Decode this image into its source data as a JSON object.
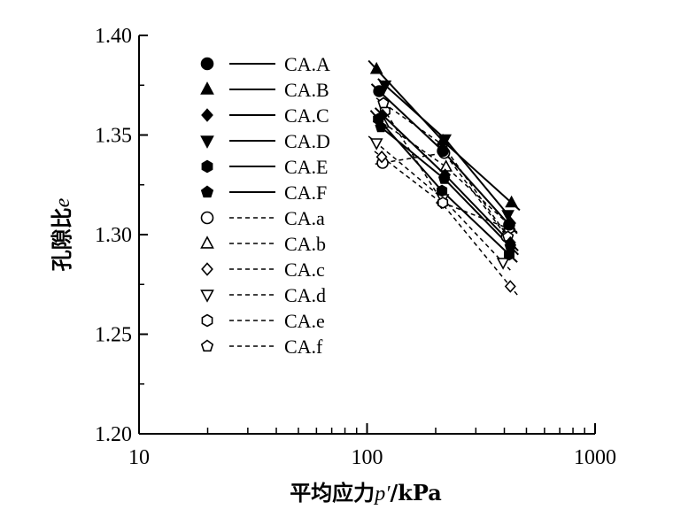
{
  "chart_data": {
    "type": "line",
    "x_scale": "log",
    "xlim": [
      10,
      1000
    ],
    "ylim": [
      1.2,
      1.4
    ],
    "x_ticks": [
      "10",
      "100",
      "1000"
    ],
    "y_ticks": [
      "1.20",
      "1.25",
      "1.30",
      "1.35",
      "1.40"
    ],
    "xlabel": {
      "prefix": "平均应力",
      "var": "p′",
      "suffix": "/kPa"
    },
    "ylabel": {
      "prefix": "孔隙比",
      "var": "e"
    },
    "legend_position": "top-left",
    "grid": false,
    "series": [
      {
        "name": "CA.A",
        "marker": "circle",
        "filled": true,
        "line": "solid",
        "points": [
          [
            113,
            1.372
          ],
          [
            215,
            1.342
          ],
          [
            420,
            1.305
          ]
        ]
      },
      {
        "name": "CA.B",
        "marker": "triangle-up",
        "filled": true,
        "line": "solid",
        "points": [
          [
            110,
            1.383
          ],
          [
            215,
            1.347
          ],
          [
            430,
            1.316
          ]
        ]
      },
      {
        "name": "CA.C",
        "marker": "diamond",
        "filled": true,
        "line": "solid",
        "points": [
          [
            117,
            1.36
          ],
          [
            220,
            1.33
          ],
          [
            425,
            1.296
          ]
        ]
      },
      {
        "name": "CA.D",
        "marker": "triangle-down",
        "filled": true,
        "line": "solid",
        "points": [
          [
            120,
            1.375
          ],
          [
            220,
            1.348
          ],
          [
            415,
            1.31
          ]
        ]
      },
      {
        "name": "CA.E",
        "marker": "hexagon",
        "filled": true,
        "line": "solid",
        "points": [
          [
            112,
            1.358
          ],
          [
            213,
            1.322
          ],
          [
            420,
            1.29
          ]
        ]
      },
      {
        "name": "CA.F",
        "marker": "pentagon",
        "filled": true,
        "line": "solid",
        "points": [
          [
            115,
            1.354
          ],
          [
            218,
            1.328
          ],
          [
            425,
            1.294
          ]
        ]
      },
      {
        "name": "CA.a",
        "marker": "circle",
        "filled": false,
        "line": "dashed",
        "points": [
          [
            117,
            1.336
          ],
          [
            218,
            1.341
          ],
          [
            410,
            1.299
          ]
        ]
      },
      {
        "name": "CA.b",
        "marker": "triangle-up",
        "filled": false,
        "line": "dashed",
        "points": [
          [
            118,
            1.356
          ],
          [
            222,
            1.334
          ],
          [
            420,
            1.305
          ]
        ]
      },
      {
        "name": "CA.c",
        "marker": "diamond",
        "filled": false,
        "line": "dashed",
        "points": [
          [
            116,
            1.339
          ],
          [
            212,
            1.316
          ],
          [
            425,
            1.274
          ]
        ]
      },
      {
        "name": "CA.d",
        "marker": "triangle-down",
        "filled": false,
        "line": "dashed",
        "points": [
          [
            110,
            1.346
          ],
          [
            215,
            1.318
          ],
          [
            395,
            1.286
          ]
        ]
      },
      {
        "name": "CA.e",
        "marker": "hexagon",
        "filled": false,
        "line": "dashed",
        "points": [
          [
            120,
            1.362
          ],
          [
            215,
            1.316
          ],
          [
            420,
            1.303
          ]
        ]
      },
      {
        "name": "CA.f",
        "marker": "pentagon",
        "filled": false,
        "line": "dashed",
        "points": [
          [
            118,
            1.366
          ],
          [
            215,
            1.345
          ],
          [
            415,
            1.299
          ]
        ]
      }
    ]
  }
}
